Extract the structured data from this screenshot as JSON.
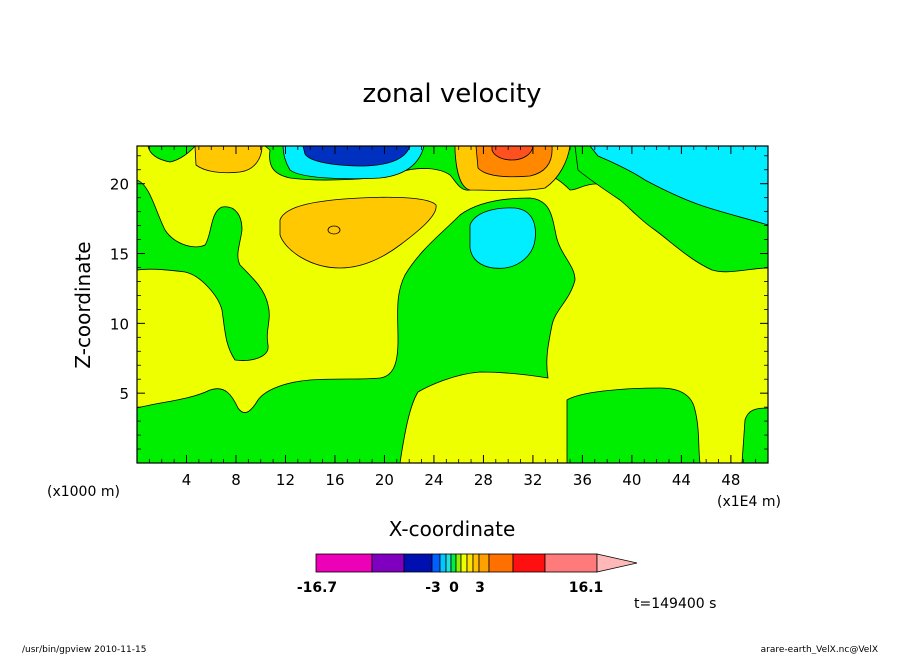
{
  "chart_data": {
    "type": "contour",
    "title": "zonal velocity",
    "xlabel": "X-coordinate",
    "ylabel": "Z-coordinate",
    "x_unit_left": "(x1000 m)",
    "x_unit_right": "(x1E4 m)",
    "xlim": [
      0,
      51
    ],
    "ylim": [
      0,
      22.7
    ],
    "x_ticks": [
      "4",
      "8",
      "12",
      "16",
      "20",
      "24",
      "28",
      "32",
      "36",
      "40",
      "44",
      "48"
    ],
    "y_ticks": [
      "5",
      "10",
      "15",
      "20"
    ],
    "time_label": "t=149400 s",
    "colorbar": {
      "labels": [
        "-16.7",
        "-3",
        "0",
        "3",
        "16.1"
      ],
      "colors": [
        "#ec00b8",
        "#8000c0",
        "#0010b0",
        "#0060ff",
        "#00c8ff",
        "#20e0e0",
        "#00ee40",
        "#90f000",
        "#eeff00",
        "#ffe000",
        "#ffc000",
        "#ffa000",
        "#ff7000",
        "#ff1010",
        "#ff7a7a",
        "#ffb8b8"
      ]
    },
    "levels_colors": {
      "green": "#00ee00",
      "yellow": "#eeff00",
      "orange_light": "#ffc800",
      "orange": "#ff8800",
      "cyan": "#00eeff",
      "blue": "#0030c0"
    }
  },
  "footer": {
    "left": "/usr/bin/gpview   2010-11-15",
    "right": "arare-earth_VelX.nc@VelX"
  }
}
